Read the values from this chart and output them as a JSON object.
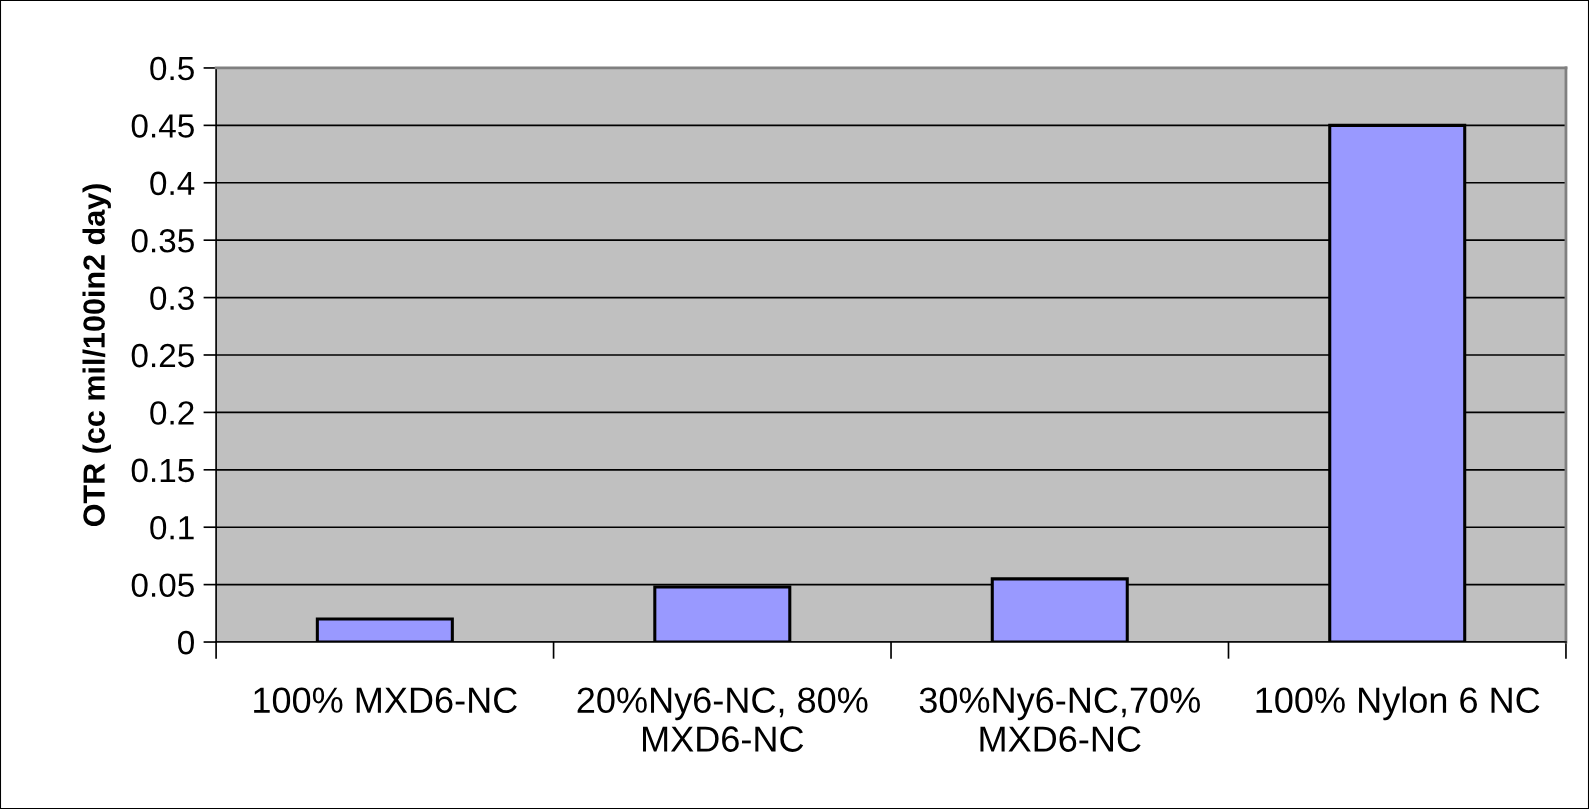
{
  "chart_data": {
    "type": "bar",
    "ylabel": "OTR (cc mil/100in2 day)",
    "categories": [
      "100% MXD6-NC",
      "20%Ny6-NC, 80% MXD6-NC",
      "30%Ny6-NC,70% MXD6-NC",
      "100% Nylon 6 NC"
    ],
    "values": [
      0.02,
      0.048,
      0.055,
      0.45
    ],
    "color": "#9999ff",
    "ylim": [
      0,
      0.5
    ],
    "yticks": [
      0,
      0.05,
      0.1,
      0.15,
      0.2,
      0.25,
      0.3,
      0.35,
      0.4,
      0.45,
      0.5
    ],
    "grid": "y"
  }
}
